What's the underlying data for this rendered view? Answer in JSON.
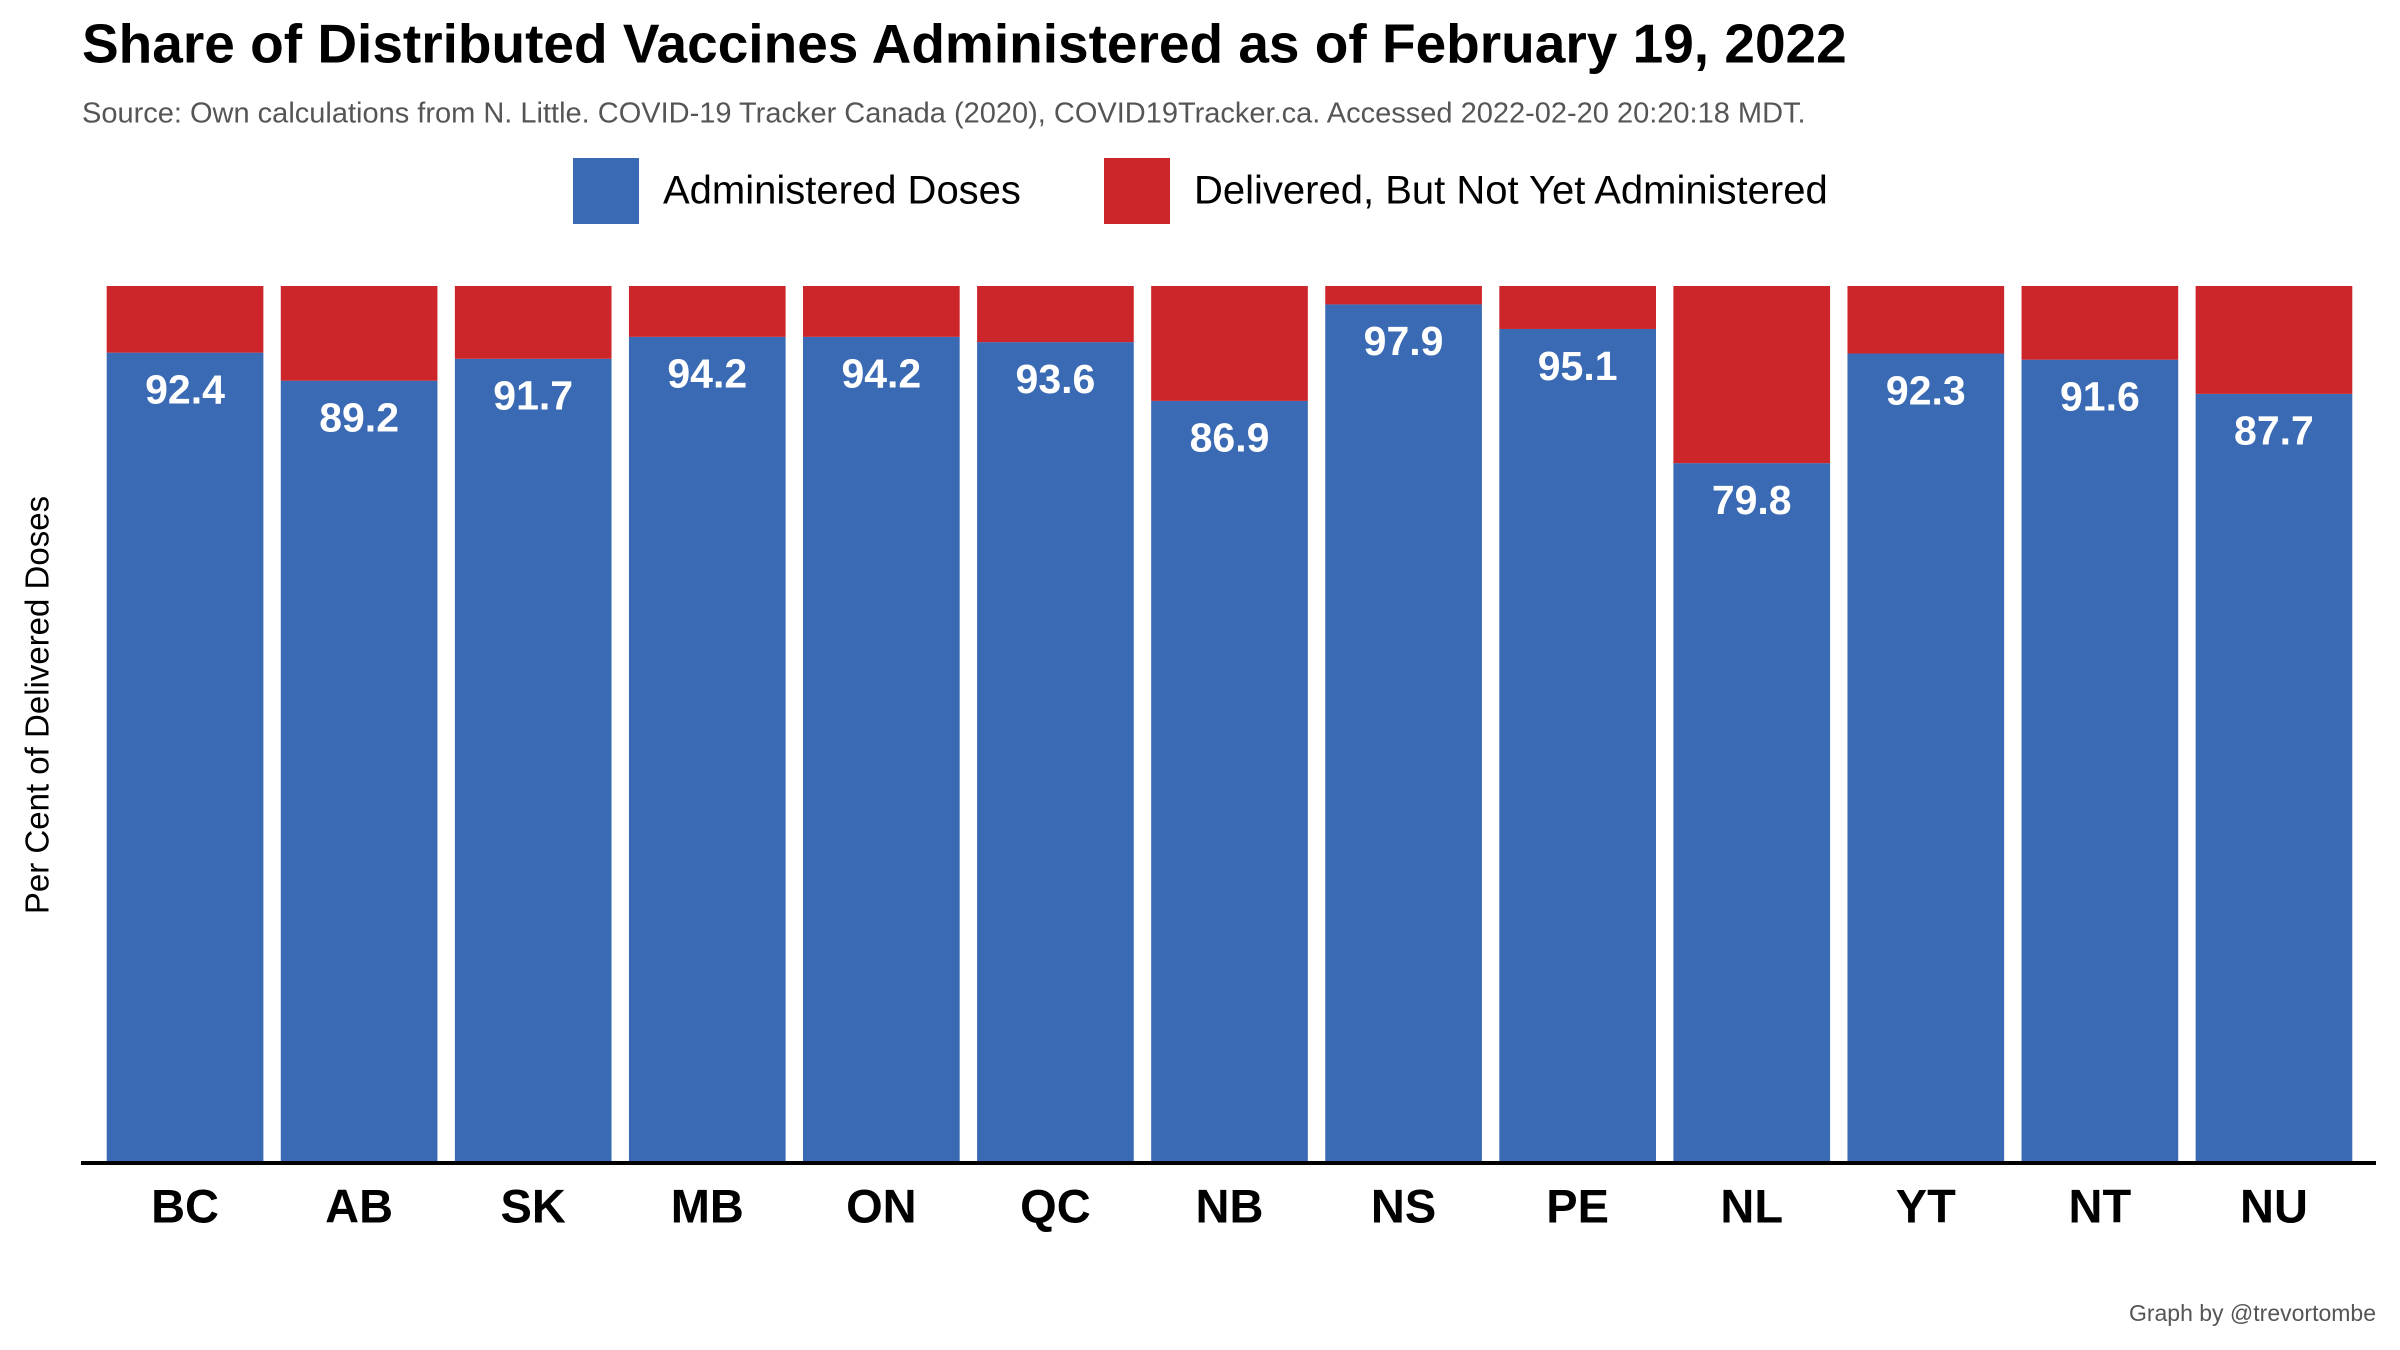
{
  "chart_data": {
    "type": "stacked_bar",
    "title": "Share of Distributed Vaccines Administered as of February 19, 2022",
    "subtitle": "Source: Own calculations from N. Little. COVID-19 Tracker Canada (2020), COVID19Tracker.ca. Accessed 2022-02-20 20:20:18 MDT.",
    "y_label": "Per Cent of Delivered Doses",
    "caption": "Graph by @trevortombe",
    "categories": [
      "BC",
      "AB",
      "SK",
      "MB",
      "ON",
      "QC",
      "NB",
      "NS",
      "PE",
      "NL",
      "YT",
      "NT",
      "NU"
    ],
    "series": [
      {
        "name": "Administered Doses",
        "color": "#3a6ab3",
        "values": [
          92.4,
          89.2,
          91.7,
          94.2,
          94.2,
          93.6,
          86.9,
          97.9,
          95.1,
          79.8,
          92.3,
          91.6,
          87.7
        ]
      },
      {
        "name": "Delivered, But Not Yet Administered",
        "color": "#cc252a",
        "values": [
          7.6,
          10.8,
          8.3,
          5.8,
          5.8,
          6.4,
          13.1,
          2.1,
          4.9,
          20.2,
          7.7,
          8.4,
          12.3
        ]
      }
    ],
    "ylim": [
      0,
      100
    ]
  }
}
